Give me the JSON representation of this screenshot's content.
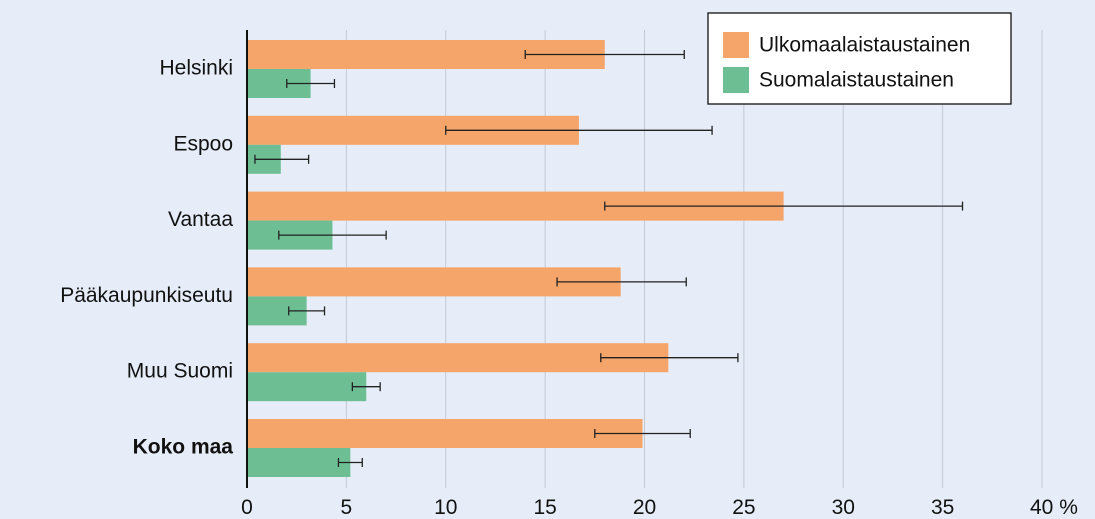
{
  "chart_data": {
    "type": "bar",
    "orientation": "horizontal",
    "categories": [
      "Helsinki",
      "Espoo",
      "Vantaa",
      "Pääkaupunkiseutu",
      "Muu Suomi",
      "Koko maa"
    ],
    "bold_categories": [
      "Koko maa"
    ],
    "series": [
      {
        "name": "Ulkomaalaistaustainen",
        "color": "#f5a46a",
        "values": [
          18.0,
          16.7,
          27.0,
          18.8,
          21.2,
          19.9
        ],
        "err_low": [
          14.0,
          10.0,
          18.0,
          15.6,
          17.8,
          17.5
        ],
        "err_high": [
          22.0,
          23.4,
          36.0,
          22.1,
          24.7,
          22.3
        ]
      },
      {
        "name": "Suomalaistaustainen",
        "color": "#6dbf93",
        "values": [
          3.2,
          1.7,
          4.3,
          3.0,
          6.0,
          5.2
        ],
        "err_low": [
          2.0,
          0.4,
          1.6,
          2.1,
          5.3,
          4.6
        ],
        "err_high": [
          4.4,
          3.1,
          7.0,
          3.9,
          6.7,
          5.8
        ]
      }
    ],
    "x_ticks": [
      "0",
      "5",
      "10",
      "15",
      "20",
      "25",
      "30",
      "35",
      "40 %"
    ],
    "xlim": [
      0,
      40
    ],
    "grid": true,
    "legend_position": "top-right"
  }
}
